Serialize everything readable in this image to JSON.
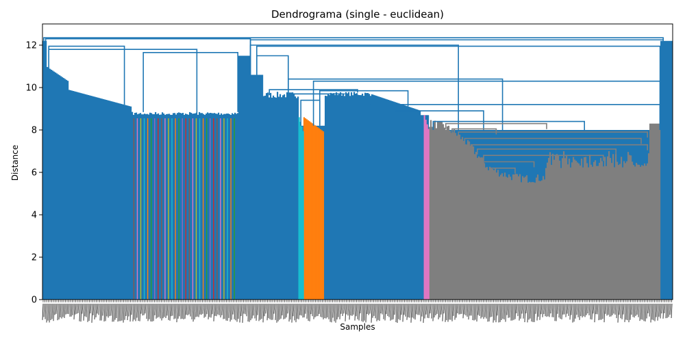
{
  "chart_data": {
    "type": "dendrogram",
    "title": "Dendrograma (single - euclidean)",
    "xlabel": "Samples",
    "ylabel": "Distance",
    "ylim": [
      0,
      13
    ],
    "yticks": [
      0,
      2,
      4,
      6,
      8,
      10,
      12
    ],
    "grid": false,
    "legend": "none",
    "colors": {
      "above_threshold": "#1f77b4",
      "cluster_orange": "#ff7f0e",
      "cluster_gray": "#7f7f7f",
      "cluster_cyan": "#17becf",
      "cluster_pink": "#e377c2"
    },
    "clusters": [
      {
        "color": "#ff7f0e",
        "from_frac": 0.414,
        "to_frac": 0.446,
        "root_height": 8.6
      },
      {
        "color": "#7f7f7f",
        "from_frac": 0.613,
        "to_frac": 0.98,
        "root_height": 8.5
      },
      {
        "color": "#e377c2",
        "from_frac": 0.605,
        "to_frac": 0.612,
        "root_height": 8.7
      },
      {
        "color": "#17becf",
        "from_frac": 0.406,
        "to_frac": 0.413,
        "root_height": 8.6
      }
    ],
    "top_merge_heights": [
      12.35,
      12.3,
      12.25,
      12.0,
      11.9,
      11.6,
      11.5,
      10.3,
      9.9
    ]
  }
}
